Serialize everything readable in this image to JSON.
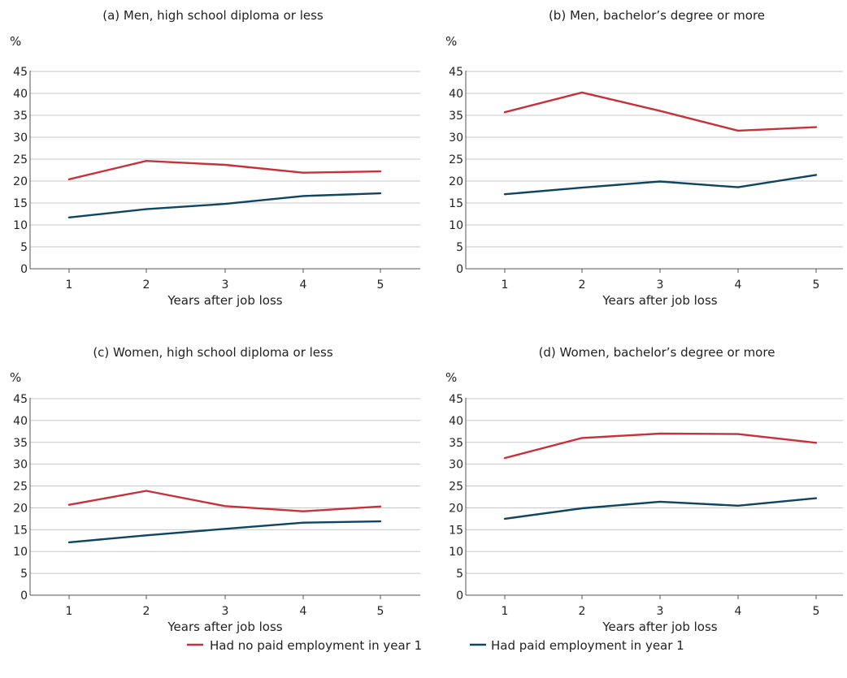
{
  "legend": [
    {
      "label": "Had no paid employment in year 1",
      "color": "#c8303a"
    },
    {
      "label": "Had paid employment in year 1",
      "color": "#0e4560"
    }
  ],
  "chart_data": [
    {
      "type": "line",
      "title": "(a) Men, high school diploma or less",
      "unit_label": "%",
      "xlabel": "Years after job loss",
      "x": [
        1,
        2,
        3,
        4,
        5
      ],
      "ylim": [
        0,
        45
      ],
      "yticks": [
        0,
        5,
        10,
        15,
        20,
        25,
        30,
        35,
        40,
        45
      ],
      "grid": true,
      "series": [
        {
          "name": "Had no paid employment in year 1",
          "color": "#c8303a",
          "values": [
            20.4,
            24.6,
            23.7,
            21.9,
            22.2
          ]
        },
        {
          "name": "Had paid employment in year 1",
          "color": "#0e4560",
          "values": [
            11.7,
            13.6,
            14.8,
            16.6,
            17.2
          ]
        }
      ]
    },
    {
      "type": "line",
      "title": "(b) Men, bachelor’s degree or more",
      "unit_label": "%",
      "xlabel": "Years after job loss",
      "x": [
        1,
        2,
        3,
        4,
        5
      ],
      "ylim": [
        0,
        45
      ],
      "yticks": [
        0,
        5,
        10,
        15,
        20,
        25,
        30,
        35,
        40,
        45
      ],
      "grid": true,
      "series": [
        {
          "name": "Had no paid employment in year 1",
          "color": "#c8303a",
          "values": [
            35.7,
            40.2,
            36.0,
            31.5,
            32.3
          ]
        },
        {
          "name": "Had paid employment in year 1",
          "color": "#0e4560",
          "values": [
            17.0,
            18.5,
            19.9,
            18.6,
            21.4
          ]
        }
      ]
    },
    {
      "type": "line",
      "title": "(c) Women, high school diploma or less",
      "unit_label": "%",
      "xlabel": "Years after job loss",
      "x": [
        1,
        2,
        3,
        4,
        5
      ],
      "ylim": [
        0,
        45
      ],
      "yticks": [
        0,
        5,
        10,
        15,
        20,
        25,
        30,
        35,
        40,
        45
      ],
      "grid": true,
      "series": [
        {
          "name": "Had no paid employment in year 1",
          "color": "#c8303a",
          "values": [
            20.7,
            23.9,
            20.4,
            19.2,
            20.3
          ]
        },
        {
          "name": "Had paid employment in year 1",
          "color": "#0e4560",
          "values": [
            12.1,
            13.7,
            15.2,
            16.6,
            16.9
          ]
        }
      ]
    },
    {
      "type": "line",
      "title": "(d) Women, bachelor’s degree or more",
      "unit_label": "%",
      "xlabel": "Years after job loss",
      "x": [
        1,
        2,
        3,
        4,
        5
      ],
      "ylim": [
        0,
        45
      ],
      "yticks": [
        0,
        5,
        10,
        15,
        20,
        25,
        30,
        35,
        40,
        45
      ],
      "grid": true,
      "series": [
        {
          "name": "Had no paid employment in year 1",
          "color": "#c8303a",
          "values": [
            31.4,
            36.0,
            37.0,
            36.9,
            34.9
          ]
        },
        {
          "name": "Had paid employment in year 1",
          "color": "#0e4560",
          "values": [
            17.5,
            19.9,
            21.4,
            20.5,
            22.2
          ]
        }
      ]
    }
  ]
}
